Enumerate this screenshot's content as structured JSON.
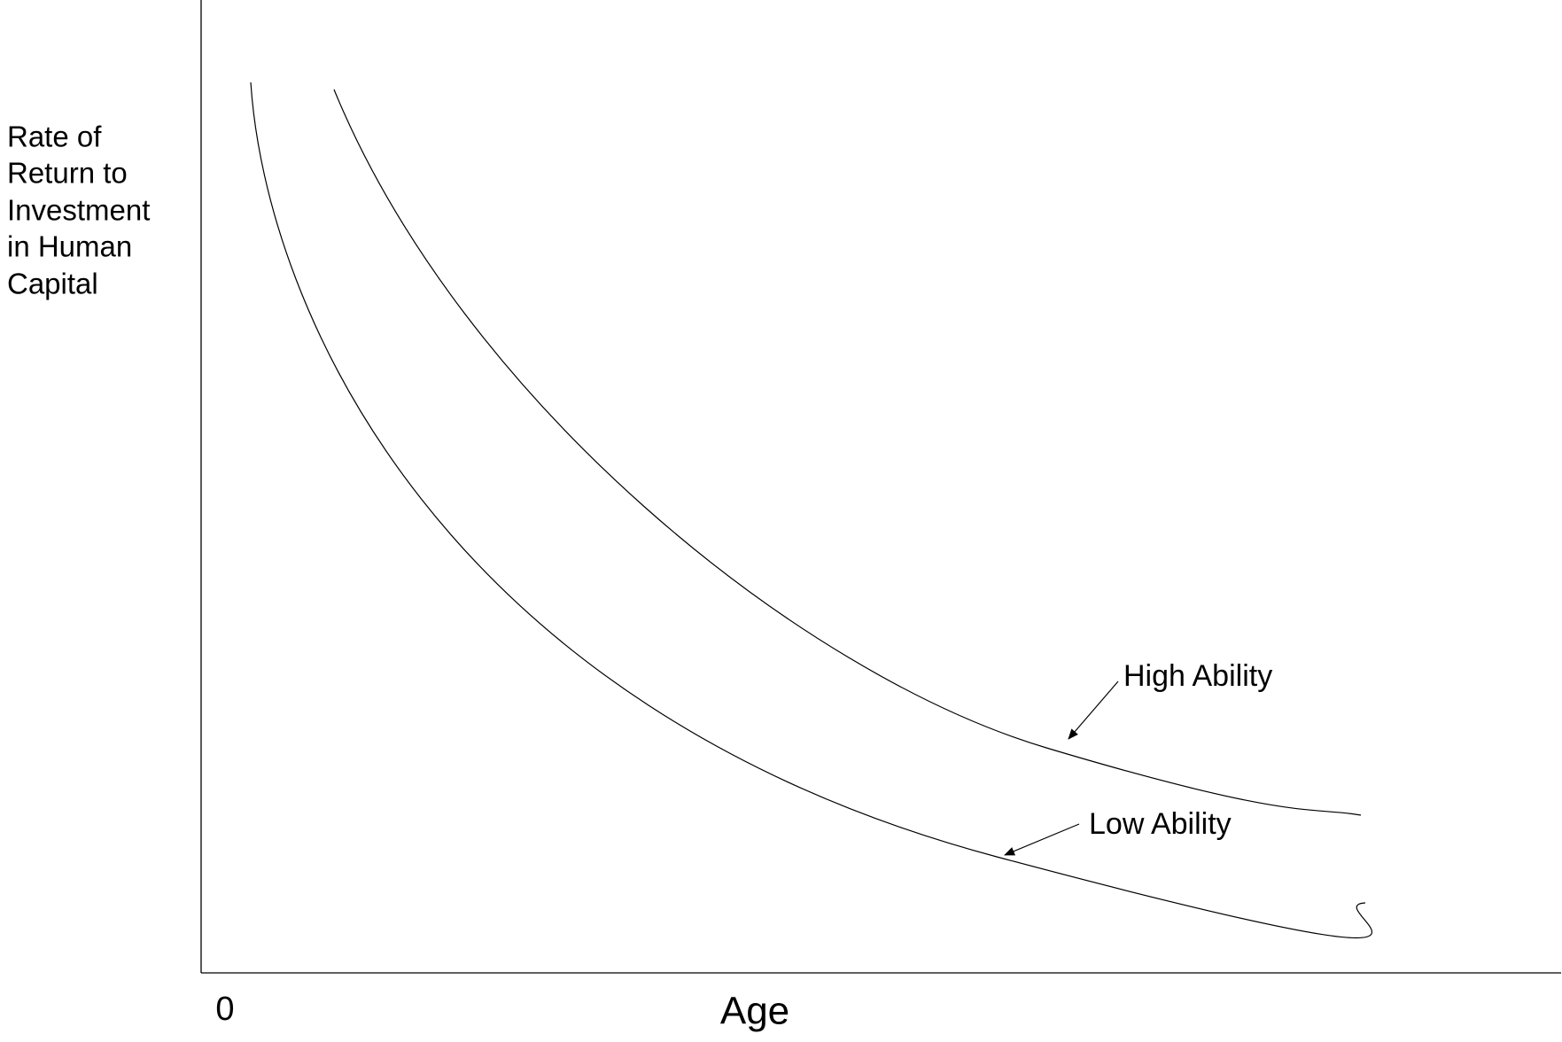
{
  "y_axis_label": [
    "Rate of",
    "Return to",
    "Investment",
    "in Human",
    "Capital"
  ],
  "x_axis_label": "Age",
  "origin_label": "0",
  "curves": [
    {
      "label": "High Ability"
    },
    {
      "label": "Low Ability"
    }
  ]
}
